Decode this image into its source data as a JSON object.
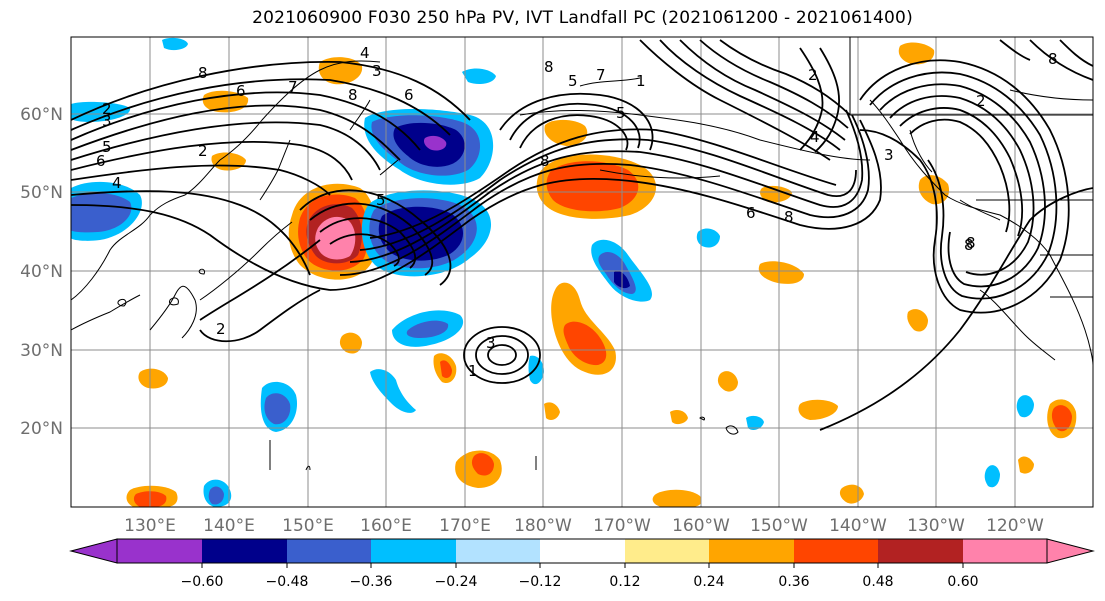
{
  "title": "2021060900 F030 250 hPa PV, IVT Landfall PC (2021061200 - 2021061400)",
  "lat_labels": [
    "60°N",
    "50°N",
    "40°N",
    "30°N",
    "20°N"
  ],
  "lon_labels": [
    "130°E",
    "140°E",
    "150°E",
    "160°E",
    "170°E",
    "180°W",
    "170°W",
    "160°W",
    "150°W",
    "140°W",
    "130°W",
    "120°W"
  ],
  "colorbar": {
    "colors": [
      "#9932cc",
      "#00008b",
      "#3a5fcd",
      "#00bfff",
      "#b2e2ff",
      "#ffffff",
      "#ffec8b",
      "#ffa500",
      "#ff4500",
      "#b22222",
      "#ff82ab"
    ],
    "tick_labels": [
      "−0.60",
      "−0.48",
      "−0.36",
      "−0.24",
      "−0.12",
      "0.12",
      "0.24",
      "0.36",
      "0.48",
      "0.60"
    ]
  },
  "contour_labels": [
    "8",
    "6",
    "7",
    "8",
    "5",
    "3",
    "5",
    "6",
    "4",
    "2",
    "4",
    "5",
    "8",
    "7",
    "5",
    "3",
    "8",
    "2",
    "3",
    "8",
    "2",
    "1",
    "8",
    "8",
    "6",
    "4",
    "2",
    "3",
    "6",
    "2",
    "8",
    "1"
  ]
}
